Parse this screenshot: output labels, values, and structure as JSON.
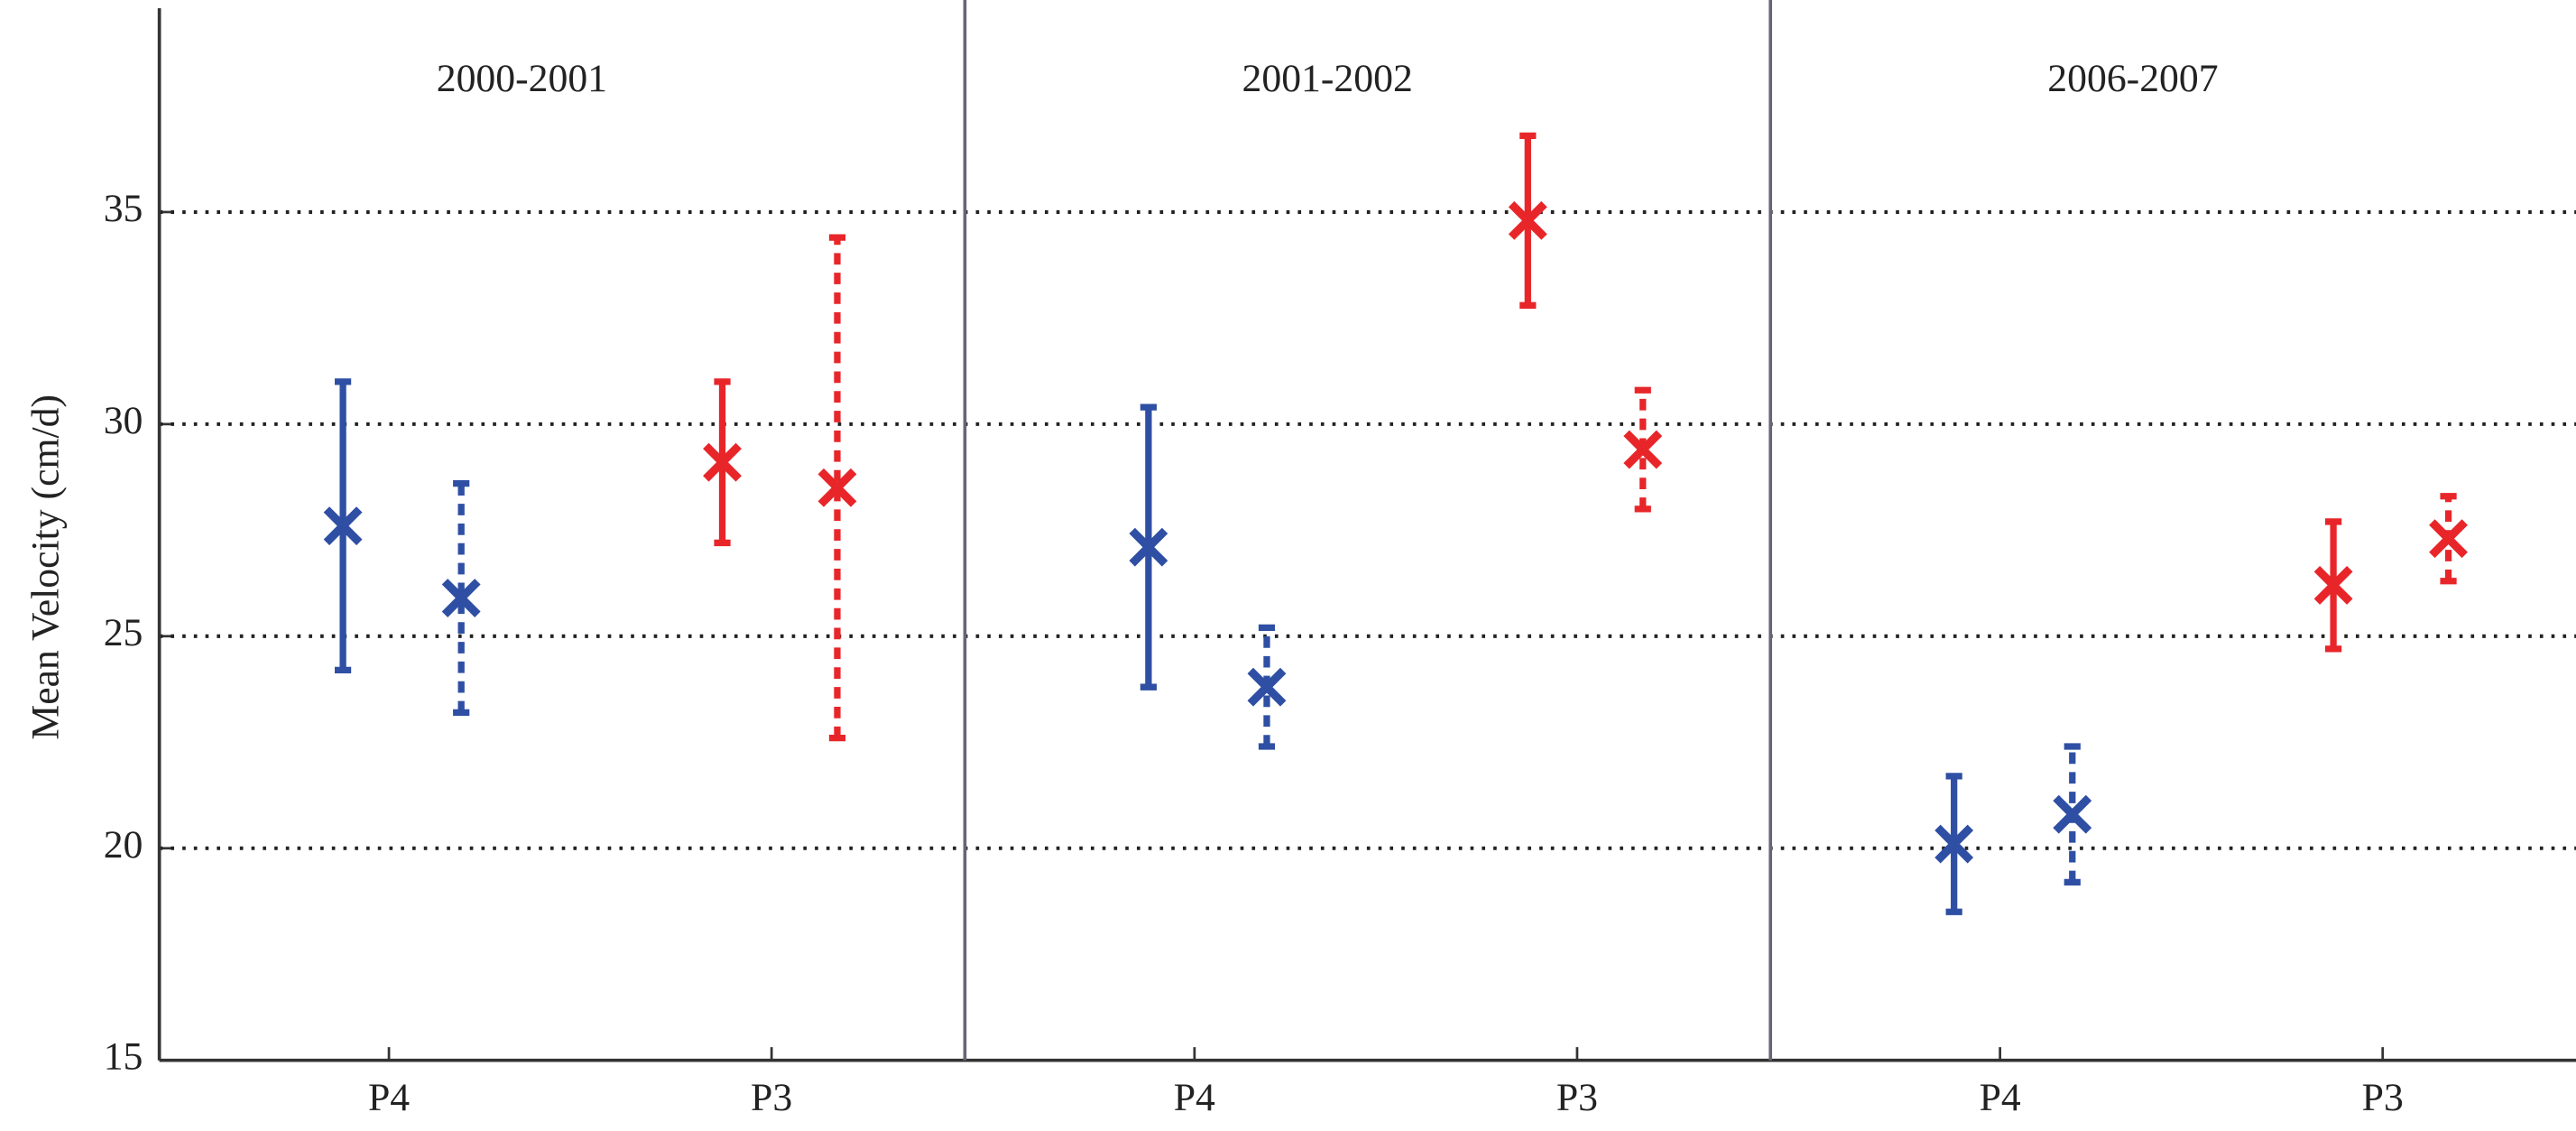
{
  "chart_data": {
    "type": "errorbar",
    "ylabel": "Mean Velocity (cm/d)",
    "ylim": [
      15,
      40
    ],
    "yticks": [
      15,
      20,
      25,
      30,
      35
    ],
    "grid": true,
    "colors": [
      "#2e4fa3",
      "#2e4fa3",
      "#e8262a",
      "#e8262a"
    ],
    "dashed": [
      false,
      true,
      false,
      true
    ],
    "panels": [
      {
        "title": "2000-2001",
        "categories": [
          "P4",
          "P3"
        ],
        "values": [
          27.6,
          25.9,
          29.1,
          28.5
        ],
        "errors": [
          3.4,
          2.7,
          1.9,
          5.9
        ]
      },
      {
        "title": "2001-2002",
        "categories": [
          "P4",
          "P3"
        ],
        "values": [
          27.1,
          23.8,
          34.8,
          29.4
        ],
        "errors": [
          3.3,
          1.4,
          2.0,
          1.4
        ]
      },
      {
        "title": "2006-2007",
        "categories": [
          "P4",
          "P3"
        ],
        "values": [
          20.1,
          20.8,
          26.2,
          27.3
        ],
        "errors": [
          1.6,
          1.6,
          1.5,
          1.0
        ]
      }
    ]
  }
}
